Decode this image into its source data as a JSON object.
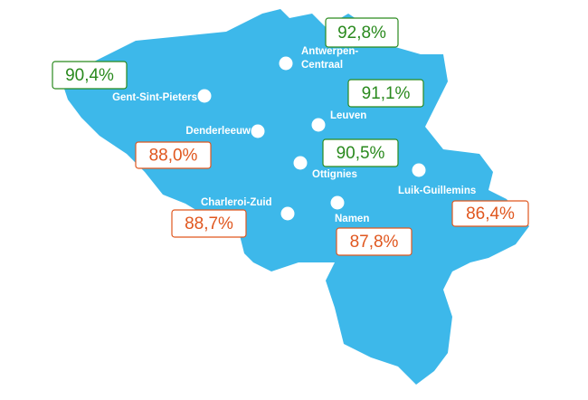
{
  "stations": [
    {
      "name_lines": [
        "Antwerpen-",
        "Centraal"
      ],
      "value": "92,8%",
      "color": "#2a8a1e"
    },
    {
      "name_lines": [
        "Gent-Sint-Pieters"
      ],
      "value": "90,4%",
      "color": "#2a8a1e"
    },
    {
      "name_lines": [
        "Leuven"
      ],
      "value": "91,1%",
      "color": "#2a8a1e"
    },
    {
      "name_lines": [
        "Denderleeuw"
      ],
      "value": "88,0%",
      "color": "#e0571f"
    },
    {
      "name_lines": [
        "Ottignies"
      ],
      "value": "90,5%",
      "color": "#2a8a1e"
    },
    {
      "name_lines": [
        "Luik-Guillemins"
      ],
      "value": "86,4%",
      "color": "#e0571f"
    },
    {
      "name_lines": [
        "Charleroi-Zuid"
      ],
      "value": "88,7%",
      "color": "#e0571f"
    },
    {
      "name_lines": [
        "Namen"
      ],
      "value": "87,8%",
      "color": "#e0571f"
    }
  ]
}
